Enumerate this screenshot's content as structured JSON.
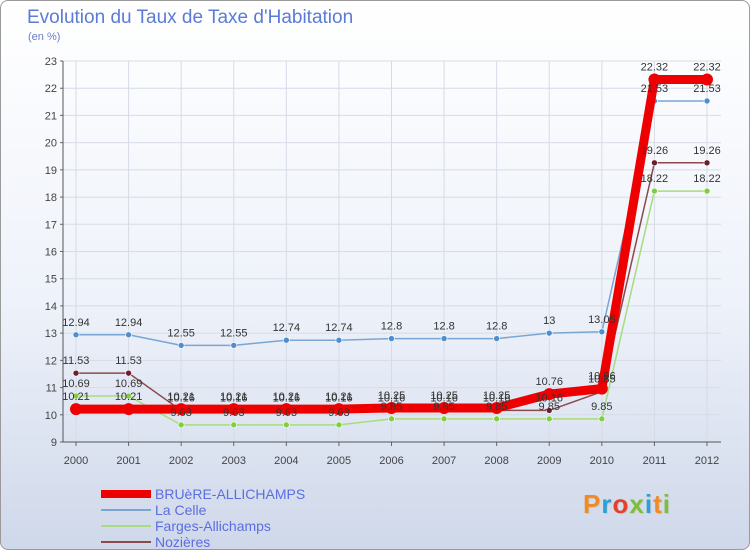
{
  "title": "Evolution du Taux de Taxe d'Habitation",
  "subtitle": "(en %)",
  "logo": {
    "text": "Proxiti",
    "colors": [
      "#f08a24",
      "#2aa0d8",
      "#e4402a",
      "#7bbf3a",
      "#2aa0d8",
      "#f08a24",
      "#7bbf3a"
    ]
  },
  "chart_data": {
    "type": "line",
    "title": "Evolution du Taux de Taxe d'Habitation",
    "ylabel": "(en %)",
    "xlabel": "",
    "x": [
      "2000",
      "2001",
      "2002",
      "2003",
      "2004",
      "2005",
      "2006",
      "2007",
      "2008",
      "2009",
      "2010",
      "2011",
      "2012"
    ],
    "ylim": [
      9,
      23
    ],
    "yticks": [
      "9",
      "10",
      "11",
      "12",
      "13",
      "14",
      "15",
      "16",
      "17",
      "18",
      "19",
      "20",
      "21",
      "22",
      "23"
    ],
    "grid": true,
    "legend_position": "bottom-left",
    "series": [
      {
        "name": "BRUèRE-ALLICHAMPS",
        "color": "#ee0000",
        "marker": "#ee0000",
        "width": 9,
        "values": [
          10.21,
          10.21,
          10.21,
          10.21,
          10.21,
          10.21,
          10.25,
          10.25,
          10.25,
          10.76,
          10.96,
          22.32,
          22.32
        ],
        "labels": [
          "10.21",
          "10.21",
          "10.21",
          "10.21",
          "10.21",
          "10.21",
          "10.25",
          "10.25",
          "10.25",
          "10.76",
          "10.96",
          "22.32",
          "22.32"
        ]
      },
      {
        "name": "La Celle",
        "color": "#7aa6d4",
        "marker": "#4b8fd0",
        "width": 1.5,
        "values": [
          12.94,
          12.94,
          12.55,
          12.55,
          12.74,
          12.74,
          12.8,
          12.8,
          12.8,
          13,
          13.05,
          21.53,
          21.53
        ],
        "labels": [
          "12.94",
          "12.94",
          "12.55",
          "12.55",
          "12.74",
          "12.74",
          "12.8",
          "12.8",
          "12.8",
          "13",
          "13.05",
          "21.53",
          "21.53"
        ]
      },
      {
        "name": "Farges-Allichamps",
        "color": "#a7dc7e",
        "marker": "#7fd040",
        "width": 1.5,
        "values": [
          10.69,
          10.69,
          9.63,
          9.63,
          9.63,
          9.63,
          9.85,
          9.85,
          9.85,
          9.85,
          9.85,
          18.22,
          18.22
        ],
        "labels": [
          "10.69",
          "10.69",
          "9.63",
          "9.63",
          "9.63",
          "9.63",
          "9.85",
          "9.85",
          "9.85",
          "9.85",
          "9.85",
          "18.22",
          "18.22"
        ]
      },
      {
        "name": "Nozières",
        "color": "#8a4a4a",
        "marker": "#6a1f2a",
        "width": 1.5,
        "values": [
          11.53,
          11.53,
          10.16,
          10.16,
          10.16,
          10.16,
          10.16,
          10.16,
          10.16,
          10.16,
          10.85,
          19.26,
          19.26
        ],
        "labels": [
          "11.53",
          "11.53",
          "10.16",
          "10.16",
          "10.16",
          "10.16",
          "10.16",
          "10.16",
          "10.16",
          "10.16",
          "10.85",
          "19.26",
          "19.26"
        ]
      }
    ]
  }
}
